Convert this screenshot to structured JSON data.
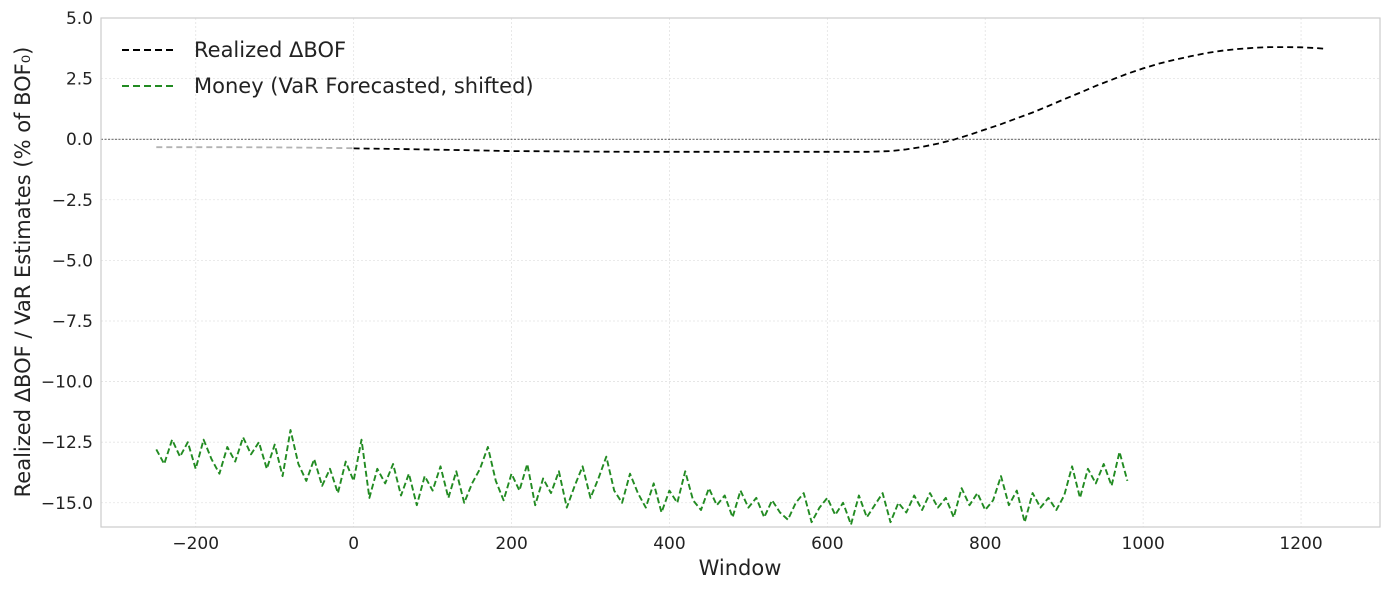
{
  "chart_data": {
    "type": "line",
    "title": "",
    "xlabel": "Window",
    "ylabel": "Realized ΔBOF / VaR Estimates (% of BOF₀)",
    "xlim": [
      -320,
      1300
    ],
    "ylim": [
      -16,
      5
    ],
    "grid": true,
    "legend_position": "top-left",
    "xticks": [
      -200,
      0,
      200,
      400,
      600,
      800,
      1000,
      1200
    ],
    "xtick_labels": [
      "−200",
      "0",
      "200",
      "400",
      "600",
      "800",
      "1000",
      "1200"
    ],
    "yticks": [
      5.0,
      2.5,
      0.0,
      -2.5,
      -5.0,
      -7.5,
      -10.0,
      -12.5,
      -15.0
    ],
    "ytick_labels": [
      "5.0",
      "2.5",
      "0.0",
      "−2.5",
      "−5.0",
      "−7.5",
      "−10.0",
      "−12.5",
      "−15.0"
    ],
    "reference_line_y": 0,
    "series": [
      {
        "name": "Realized ΔBOF",
        "color": "#000000",
        "style": "dashed",
        "x": [
          0,
          50,
          100,
          150,
          200,
          250,
          300,
          350,
          400,
          450,
          500,
          550,
          600,
          650,
          680,
          700,
          720,
          740,
          760,
          780,
          800,
          820,
          840,
          860,
          880,
          900,
          920,
          940,
          960,
          980,
          1000,
          1020,
          1040,
          1060,
          1080,
          1100,
          1120,
          1140,
          1160,
          1180,
          1200,
          1220,
          1230
        ],
        "y": [
          -0.38,
          -0.4,
          -0.43,
          -0.46,
          -0.49,
          -0.5,
          -0.51,
          -0.52,
          -0.52,
          -0.52,
          -0.52,
          -0.52,
          -0.52,
          -0.52,
          -0.49,
          -0.42,
          -0.32,
          -0.18,
          -0.02,
          0.18,
          0.4,
          0.62,
          0.86,
          1.1,
          1.37,
          1.65,
          1.92,
          2.2,
          2.45,
          2.7,
          2.92,
          3.12,
          3.28,
          3.42,
          3.55,
          3.65,
          3.72,
          3.77,
          3.8,
          3.8,
          3.79,
          3.76,
          3.73
        ]
      },
      {
        "name": "Money (VaR Forecasted, shifted)",
        "color": "#228b22",
        "style": "dashed",
        "x": [
          -250,
          -240,
          -230,
          -220,
          -210,
          -200,
          -190,
          -180,
          -170,
          -160,
          -150,
          -140,
          -130,
          -120,
          -110,
          -100,
          -90,
          -80,
          -70,
          -60,
          -50,
          -40,
          -30,
          -20,
          -10,
          0,
          10,
          20,
          30,
          40,
          50,
          60,
          70,
          80,
          90,
          100,
          110,
          120,
          130,
          140,
          150,
          160,
          170,
          180,
          190,
          200,
          210,
          220,
          230,
          240,
          250,
          260,
          270,
          280,
          290,
          300,
          310,
          320,
          330,
          340,
          350,
          360,
          370,
          380,
          390,
          400,
          410,
          420,
          430,
          440,
          450,
          460,
          470,
          480,
          490,
          500,
          510,
          520,
          530,
          540,
          550,
          560,
          570,
          580,
          590,
          600,
          610,
          620,
          630,
          640,
          650,
          660,
          670,
          680,
          690,
          700,
          710,
          720,
          730,
          740,
          750,
          760,
          770,
          780,
          790,
          800,
          810,
          820,
          830,
          840,
          850,
          860,
          870,
          880,
          890,
          900,
          910,
          920,
          930,
          940,
          950,
          960,
          970,
          980
        ],
        "y": [
          -12.8,
          -13.4,
          -12.4,
          -13.1,
          -12.5,
          -13.6,
          -12.4,
          -13.2,
          -13.8,
          -12.7,
          -13.3,
          -12.3,
          -13.0,
          -12.5,
          -13.6,
          -12.6,
          -13.9,
          -12.0,
          -13.4,
          -14.1,
          -13.2,
          -14.3,
          -13.6,
          -14.6,
          -13.3,
          -14.1,
          -12.4,
          -14.8,
          -13.6,
          -14.2,
          -13.4,
          -14.7,
          -13.8,
          -15.1,
          -13.9,
          -14.5,
          -13.5,
          -14.8,
          -13.7,
          -15.0,
          -14.2,
          -13.6,
          -12.7,
          -14.1,
          -14.9,
          -13.8,
          -14.5,
          -13.4,
          -15.1,
          -14.0,
          -14.6,
          -13.7,
          -15.2,
          -14.3,
          -13.5,
          -14.8,
          -14.0,
          -13.1,
          -14.5,
          -15.0,
          -13.8,
          -14.6,
          -15.2,
          -14.2,
          -15.4,
          -14.5,
          -15.0,
          -13.7,
          -14.9,
          -15.3,
          -14.4,
          -15.1,
          -14.7,
          -15.6,
          -14.5,
          -15.2,
          -14.8,
          -15.6,
          -14.9,
          -15.4,
          -15.7,
          -15.0,
          -14.6,
          -15.8,
          -15.2,
          -14.8,
          -15.5,
          -15.0,
          -15.9,
          -14.7,
          -15.6,
          -15.1,
          -14.6,
          -15.8,
          -15.0,
          -15.4,
          -14.7,
          -15.3,
          -14.6,
          -15.2,
          -14.8,
          -15.6,
          -14.4,
          -15.1,
          -14.6,
          -15.3,
          -14.9,
          -13.9,
          -15.1,
          -14.5,
          -15.8,
          -14.6,
          -15.2,
          -14.8,
          -15.3,
          -14.7,
          -13.5,
          -14.8,
          -13.6,
          -14.2,
          -13.4,
          -14.3,
          -12.9,
          -14.1
        ]
      },
      {
        "name": "",
        "color": "#b3b3b3",
        "style": "dashed",
        "x": [
          -250,
          -200,
          -150,
          -100,
          -50,
          0
        ],
        "y": [
          -0.33,
          -0.33,
          -0.33,
          -0.34,
          -0.35,
          -0.37
        ]
      }
    ]
  }
}
